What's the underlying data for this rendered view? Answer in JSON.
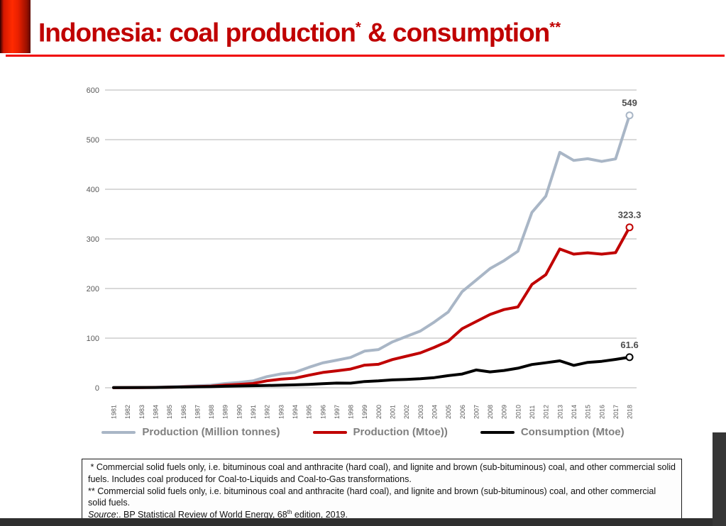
{
  "title": {
    "part1": "Indonesia: coal production",
    "sup1": "*",
    "part2": " & consumption",
    "sup2": "**",
    "color": "#c00000",
    "underline_color": "#f00000"
  },
  "chart_data": {
    "type": "line",
    "title": "",
    "xlabel": "",
    "ylabel": "",
    "x": [
      "1981",
      "1982",
      "1983",
      "1984",
      "1985",
      "1986",
      "1987",
      "1988",
      "1989",
      "1990",
      "1991",
      "1992",
      "1993",
      "1994",
      "1995",
      "1996",
      "1997",
      "1998",
      "1999",
      "2000",
      "2001",
      "2002",
      "2003",
      "2004",
      "2005",
      "2006",
      "2007",
      "2008",
      "2009",
      "2010",
      "2011",
      "2012",
      "2013",
      "2014",
      "2015",
      "2016",
      "2017",
      "2018"
    ],
    "ylim": [
      0,
      600
    ],
    "yticks": [
      0,
      100,
      200,
      300,
      400,
      500,
      600
    ],
    "grid": true,
    "grid_color": "#d9d9d9",
    "axis_text_color": "#595959",
    "end_label_color": "#4d4d4d",
    "legend_position": "bottom",
    "legend_text_color": "#7f7f7f",
    "series": [
      {
        "name": "Production (Million tonnes)",
        "color": "#a9b6c6",
        "end_label": "549",
        "values": [
          0.4,
          0.5,
          0.5,
          1.1,
          2.0,
          2.8,
          4.1,
          5.2,
          8.6,
          10.7,
          13.8,
          22.5,
          27.8,
          31.0,
          41.1,
          50.2,
          55.5,
          61.2,
          73.8,
          77.0,
          92.5,
          103.4,
          114.3,
          132.4,
          152.7,
          193.8,
          216.9,
          240.2,
          256.2,
          275.2,
          353.3,
          386.1,
          474.4,
          458.1,
          461.6,
          456.2,
          461.2,
          549.0
        ]
      },
      {
        "name": "Production (Mtoe))",
        "color": "#c00000",
        "end_label": "323.3",
        "values": [
          0.2,
          0.3,
          0.3,
          0.7,
          1.2,
          1.7,
          2.5,
          3.2,
          5.3,
          6.7,
          8.6,
          14.0,
          17.3,
          19.3,
          25.3,
          30.9,
          34.2,
          37.7,
          45.5,
          47.3,
          56.9,
          63.6,
          70.3,
          81.4,
          93.9,
          119.2,
          133.4,
          147.7,
          157.6,
          162.8,
          208.2,
          227.8,
          279.7,
          269.3,
          272.0,
          269.3,
          272.3,
          323.3
        ]
      },
      {
        "name": "Consumption (Mtoe)",
        "color": "#000000",
        "end_label": "61.6",
        "values": [
          0.3,
          0.4,
          0.5,
          0.6,
          1.0,
          1.5,
          2.0,
          2.3,
          3.0,
          3.5,
          4.2,
          4.6,
          5.1,
          5.9,
          6.9,
          8.2,
          9.5,
          9.3,
          12.6,
          13.8,
          15.9,
          16.7,
          18.1,
          20.4,
          24.4,
          27.7,
          35.9,
          32.0,
          34.8,
          39.5,
          46.8,
          50.4,
          54.3,
          45.1,
          51.2,
          53.3,
          57.2,
          61.6
        ]
      }
    ]
  },
  "footnotes": {
    "note1": " * Commercial solid fuels only, i.e. bituminous coal and anthracite (hard coal), and lignite and brown (sub-bituminous) coal, and other commercial solid fuels. Includes coal produced for Coal-to-Liquids and Coal-to-Gas transformations.",
    "note2": "** Commercial solid fuels only, i.e. bituminous coal and anthracite (hard coal), and lignite and brown (sub-bituminous) coal, and other commercial solid fuels.",
    "source_label": "Source",
    "source_mid": ":. BP Statistical Review of World Energy, 68",
    "source_sup": "th",
    "source_end": " edition, 2019."
  }
}
